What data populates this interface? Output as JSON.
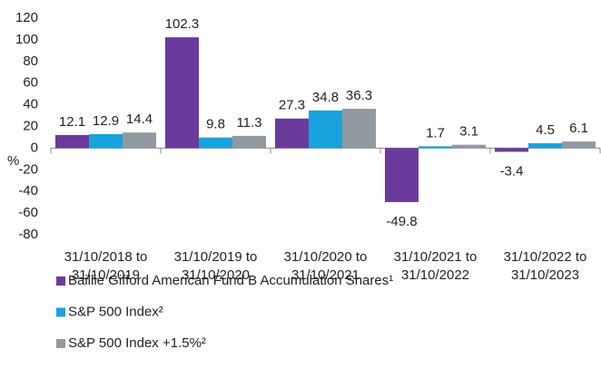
{
  "chart_data": {
    "type": "bar",
    "categories": [
      [
        "31/10/2018 to",
        "31/10/2019"
      ],
      [
        "31/10/2019 to",
        "31/10/2020"
      ],
      [
        "31/10/2020 to",
        "31/10/2021"
      ],
      [
        "31/10/2021 to",
        "31/10/2022"
      ],
      [
        "31/10/2022 to",
        "31/10/2023"
      ]
    ],
    "series": [
      {
        "name": "Baillie Gifford American Fund B Accumulation Shares¹",
        "color": "#6a3b9c",
        "values": [
          12.1,
          102.3,
          27.3,
          -49.8,
          -3.4
        ]
      },
      {
        "name": "S&P 500 Index²",
        "color": "#1aa2dc",
        "values": [
          12.9,
          9.8,
          34.8,
          1.7,
          4.5
        ]
      },
      {
        "name": "S&P 500 Index +1.5%²",
        "color": "#9199a1",
        "values": [
          14.4,
          11.3,
          36.3,
          3.1,
          6.1
        ]
      }
    ],
    "y_axis_label": "%",
    "ylim": [
      -80,
      120
    ],
    "yticks": [
      -80,
      -60,
      -40,
      -20,
      0,
      20,
      40,
      60,
      80,
      100,
      120
    ]
  }
}
